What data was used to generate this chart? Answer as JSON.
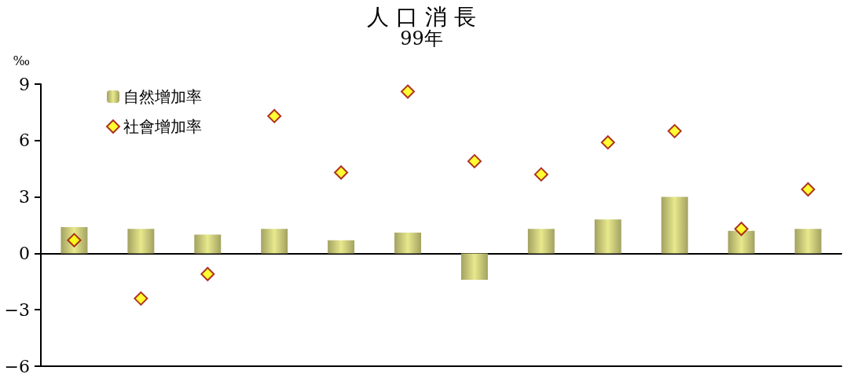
{
  "chart_data": {
    "type": "bar",
    "title": "人 口 消 長",
    "subtitle": "99年",
    "ylabel": "‰",
    "categories": [
      null,
      null,
      null,
      null,
      null,
      null,
      null,
      null,
      null,
      null,
      null,
      null
    ],
    "series": [
      {
        "name": "自然增加率",
        "color": "#e8e88c",
        "values": [
          1.4,
          1.3,
          1.0,
          1.3,
          0.7,
          1.1,
          -1.4,
          1.3,
          1.8,
          3.0,
          1.2,
          1.3
        ]
      },
      {
        "name": "社會增加率",
        "type": "scatter",
        "color": "#ffff00",
        "marker": "diamond",
        "values": [
          0.7,
          -2.4,
          -1.1,
          7.3,
          4.3,
          8.6,
          4.9,
          4.2,
          5.9,
          6.5,
          1.3,
          3.4
        ]
      }
    ],
    "ylim": [
      -6,
      9
    ],
    "yticks": [
      -6,
      -3,
      0,
      3,
      6,
      9
    ],
    "legend": "top left"
  }
}
